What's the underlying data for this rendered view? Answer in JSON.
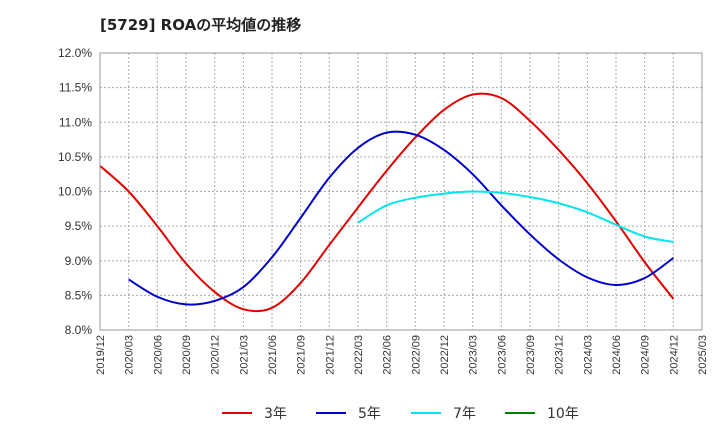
{
  "chart_data": {
    "type": "line",
    "title": "[5729]  ROAの平均値の推移",
    "xlabel": "",
    "ylabel": "",
    "ylim": [
      8.0,
      12.0
    ],
    "y_ticks": [
      "12.0%",
      "11.5%",
      "11.0%",
      "10.5%",
      "10.0%",
      "9.5%",
      "9.0%",
      "8.5%",
      "8.0%"
    ],
    "x": [
      "2019/12",
      "2020/03",
      "2020/06",
      "2020/09",
      "2020/12",
      "2021/03",
      "2021/06",
      "2021/09",
      "2021/12",
      "2022/03",
      "2022/06",
      "2022/09",
      "2022/12",
      "2023/03",
      "2023/06",
      "2023/09",
      "2023/12",
      "2024/03",
      "2024/06",
      "2024/09",
      "2024/12",
      "2025/03"
    ],
    "grid": true,
    "legend_position": "bottom",
    "series": [
      {
        "name": "3年",
        "color": "#e00000",
        "values": [
          10.37,
          10.0,
          9.5,
          8.96,
          8.55,
          8.3,
          8.32,
          8.68,
          9.23,
          9.77,
          10.3,
          10.78,
          11.18,
          11.4,
          11.35,
          11.02,
          10.6,
          10.12,
          9.57,
          8.98,
          8.45,
          null
        ]
      },
      {
        "name": "5年",
        "color": "#0000cc",
        "values": [
          null,
          8.73,
          8.48,
          8.37,
          8.42,
          8.62,
          9.05,
          9.62,
          10.2,
          10.63,
          10.85,
          10.82,
          10.6,
          10.25,
          9.8,
          9.38,
          9.02,
          8.76,
          8.65,
          8.75,
          9.04,
          null
        ]
      },
      {
        "name": "7年",
        "color": "#00e5ee",
        "values": [
          null,
          null,
          null,
          null,
          null,
          null,
          null,
          null,
          null,
          9.55,
          9.8,
          9.91,
          9.97,
          10.0,
          9.98,
          9.92,
          9.83,
          9.7,
          9.52,
          9.35,
          9.27,
          null
        ]
      },
      {
        "name": "10年",
        "color": "#008000",
        "values": [
          null,
          null,
          null,
          null,
          null,
          null,
          null,
          null,
          null,
          null,
          null,
          null,
          null,
          null,
          null,
          null,
          null,
          null,
          null,
          null,
          null,
          null
        ]
      }
    ]
  }
}
